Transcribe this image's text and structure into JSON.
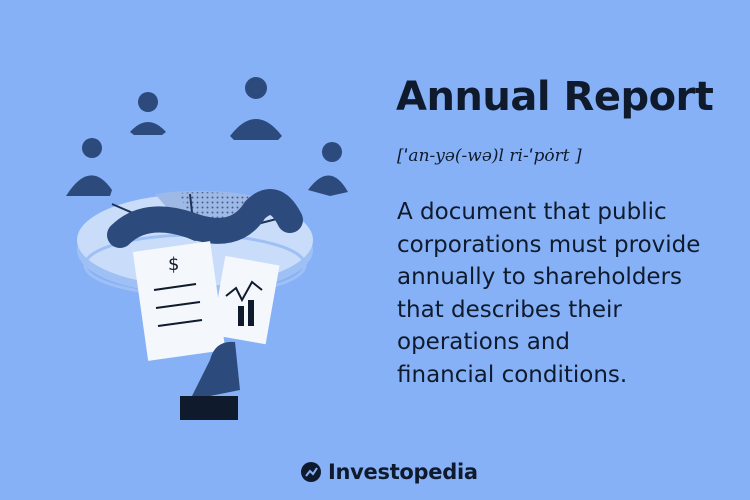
{
  "header": {
    "title": "Annual Report",
    "phonetic": "[ˈan-yə(-wə)l ri-ˈpȯrt  ]"
  },
  "definition": {
    "lines": [
      "A document that public",
      "corporations must provide",
      "annually to shareholders",
      "that describes their",
      "operations and",
      "financial conditions."
    ]
  },
  "illustration": {
    "document_symbol": "$",
    "icons": [
      "pie-chart-table",
      "dollar-sign",
      "document",
      "chart-paper",
      "hand",
      "person"
    ]
  },
  "brand": {
    "name": "Investopedia",
    "icon": "investopedia-logo-icon"
  },
  "colors": {
    "background": "#86b1f7",
    "navy": "#2c4a7c",
    "dark": "#0f1b2d",
    "light": "#c9ddfa"
  }
}
